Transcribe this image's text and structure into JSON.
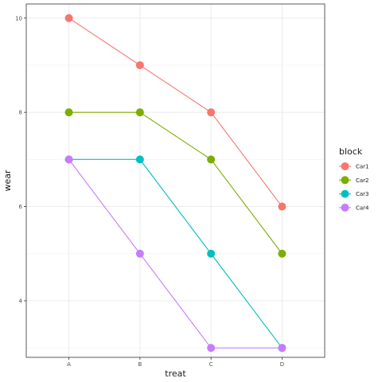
{
  "chart_data": {
    "type": "line",
    "xlabel": "treat",
    "ylabel": "wear",
    "categories": [
      "A",
      "B",
      "C",
      "D"
    ],
    "ylim": [
      2.8,
      10.3
    ],
    "yticks": [
      4,
      6,
      8,
      10
    ],
    "grid": true,
    "legend": {
      "title": "block",
      "position": "right"
    },
    "series": [
      {
        "name": "Car1",
        "color": "#F8766D",
        "values": [
          10,
          9,
          8,
          6
        ]
      },
      {
        "name": "Car2",
        "color": "#7CAE00",
        "values": [
          8,
          8,
          7,
          5
        ]
      },
      {
        "name": "Car3",
        "color": "#00BFC4",
        "values": [
          7,
          7,
          5,
          3
        ]
      },
      {
        "name": "Car4",
        "color": "#C77CFF",
        "values": [
          7,
          5,
          3,
          3
        ]
      }
    ]
  }
}
